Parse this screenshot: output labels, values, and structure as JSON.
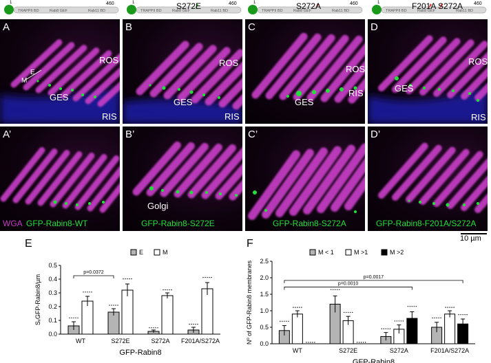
{
  "domains": [
    {
      "n_term": "1",
      "c_term": "460",
      "labels": [
        "TRAPPII BD",
        "Rab8 GEF",
        "Rab11 BD"
      ],
      "mutation": ""
    },
    {
      "n_term": "1",
      "c_term": "460",
      "labels": [
        "TRAPPII BD",
        "Rab8 GEF",
        "Rab11 BD"
      ],
      "mutation": "S272E"
    },
    {
      "n_term": "1",
      "c_term": "460",
      "labels": [
        "TRAPPII BD",
        "Rab8 GEF",
        "Rab11 BD"
      ],
      "mutation": "S272A"
    },
    {
      "n_term": "1",
      "c_term": "460",
      "labels": [
        "TRAPPII BD",
        "Rab8 GEF",
        "Rab11 BD"
      ],
      "mutation": "F201A S272A"
    }
  ],
  "panels": {
    "A": {
      "label": "A",
      "annotations": {
        "ros": "ROS",
        "ges": "GES",
        "ris": "RIS",
        "m": "M",
        "e": "E"
      }
    },
    "B": {
      "label": "B",
      "annotations": {
        "ros": "ROS",
        "ges": "GES",
        "ris": "RIS"
      }
    },
    "C": {
      "label": "C",
      "annotations": {
        "ros": "ROS",
        "ges": "GES",
        "ris": "RIS"
      }
    },
    "D": {
      "label": "D",
      "annotations": {
        "ros": "ROS",
        "ges": "GES",
        "ris": "RIS"
      }
    },
    "A2": {
      "label": "A’",
      "caption_wga": "WGA",
      "caption_gfp": "GFP-Rabin8-WT"
    },
    "B2": {
      "label": "B’",
      "golgi": "Golgi",
      "caption_gfp": "GFP-Rabin8-S272E"
    },
    "C2": {
      "label": "C’",
      "caption_gfp": "GFP-Rabin8-S272A"
    },
    "D2": {
      "label": "D’",
      "caption_gfp": "GFP-Rabin8-F201A/S272A"
    }
  },
  "scalebar": "10 µm",
  "colors": {
    "magenta": "#c63cc6",
    "green": "#22e03a",
    "blue": "#1a1aa8",
    "grey_bar": "#b4b4b4"
  },
  "chart_data": [
    {
      "panel_letter": "E",
      "type": "bar",
      "categories": [
        "WT",
        "S272E",
        "S272A",
        "F201A/S272A"
      ],
      "series": [
        {
          "name": "E",
          "color": "#b4b4b4",
          "values": [
            0.06,
            0.16,
            0.02,
            0.03
          ],
          "errors": [
            0.03,
            0.025,
            0.01,
            0.02
          ]
        },
        {
          "name": "M",
          "color": "#ffffff",
          "values": [
            0.24,
            0.32,
            0.28,
            0.33
          ],
          "errors": [
            0.035,
            0.045,
            0.02,
            0.045
          ]
        }
      ],
      "ylabel": "SₓGFP-Rabin8₁₂₃₄",
      "ylabel_display": "SₓGFP-Rabin8/µm",
      "xlabel": "GFP-Rabin8",
      "ylim": [
        0,
        0.5
      ],
      "yticks": [
        "0.0",
        "0.1",
        "0.2",
        "0.3",
        "0.4",
        "0.5"
      ],
      "annotations": [
        {
          "text": "p=0.0372"
        }
      ],
      "legend": "top"
    },
    {
      "panel_letter": "F",
      "type": "bar",
      "categories": [
        "WT",
        "S272E",
        "S272A",
        "F201A/S272A"
      ],
      "series": [
        {
          "name": "M < 1",
          "color": "#b4b4b4",
          "values": [
            0.4,
            1.2,
            0.22,
            0.5
          ],
          "errors": [
            0.15,
            0.25,
            0.12,
            0.15
          ]
        },
        {
          "name": "M >1",
          "color": "#ffffff",
          "values": [
            0.9,
            0.7,
            0.44,
            0.9
          ],
          "errors": [
            0.1,
            0.13,
            0.13,
            0.1
          ]
        },
        {
          "name": "M >2",
          "color": "#000000",
          "values": [
            0.0,
            0.0,
            0.77,
            0.6
          ],
          "errors": [
            0.0,
            0.0,
            0.2,
            0.15
          ]
        }
      ],
      "ylabel": "Nº of GFP-Rabin8 membranes",
      "xlabel": "GFP-Rabin8",
      "ylim": [
        0,
        2.5
      ],
      "yticks": [
        "0.0",
        "0.5",
        "1.0",
        "1.5",
        "2.0",
        "2.5"
      ],
      "annotations": [
        {
          "text": "p=0.0010"
        },
        {
          "text": "p=0.0017"
        }
      ],
      "legend": "top"
    }
  ]
}
